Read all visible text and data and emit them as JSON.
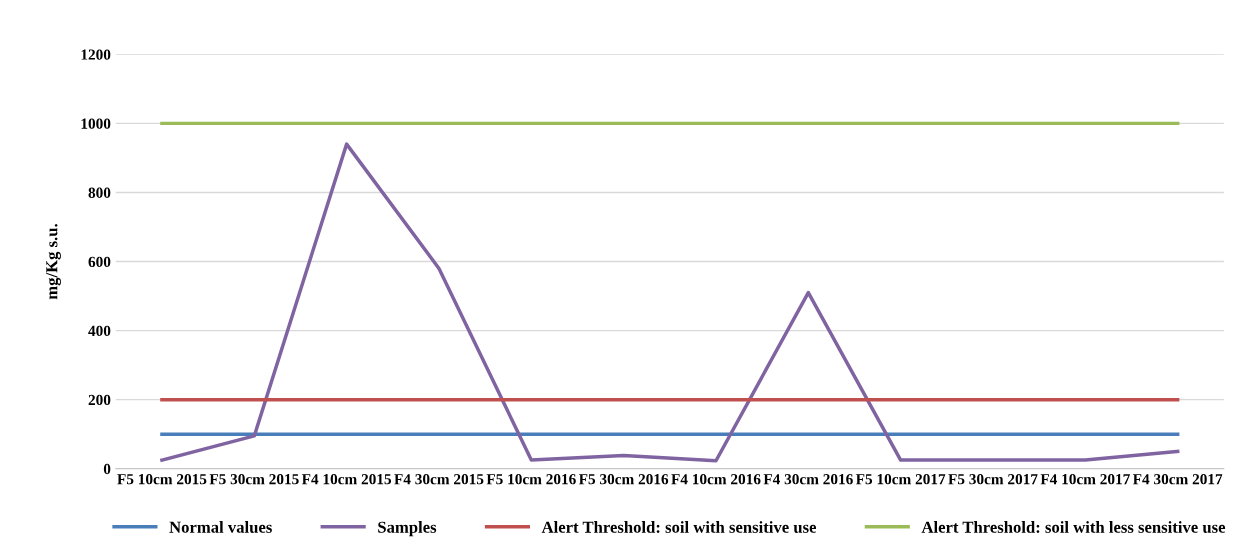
{
  "chart_data": {
    "type": "line",
    "ylabel": "mg/Kg s.u.",
    "categories": [
      "F5 10cm 2015",
      "F5 30cm 2015",
      "F4 10cm 2015",
      "F4 30cm 2015",
      "F5 10cm 2016",
      "F5 30cm 2016",
      "F4 10cm 2016",
      "F4 30cm 2016",
      "F5 10cm 2017",
      "F5 30cm 2017",
      "F4 10cm 2017",
      "F4 30cm 2017"
    ],
    "series": [
      {
        "name": "Normal values",
        "color": "#4a7ebb",
        "values": [
          100,
          100,
          100,
          100,
          100,
          100,
          100,
          100,
          100,
          100,
          100,
          100
        ]
      },
      {
        "name": "Samples",
        "color": "#8064a2",
        "values": [
          25,
          95,
          940,
          580,
          25,
          38,
          23,
          510,
          25,
          25,
          25,
          50
        ]
      },
      {
        "name": "Alert Threshold: soil with sensitive use",
        "color": "#c0504d",
        "values": [
          200,
          200,
          200,
          200,
          200,
          200,
          200,
          200,
          200,
          200,
          200,
          200
        ]
      },
      {
        "name": "Alert Threshold: soil with less sensitive use",
        "color": "#9bbb59",
        "values": [
          1000,
          1000,
          1000,
          1000,
          1000,
          1000,
          1000,
          1000,
          1000,
          1000,
          1000,
          1000
        ]
      }
    ],
    "ylim": [
      0,
      1200
    ],
    "yticks": [
      0,
      200,
      400,
      600,
      800,
      1000,
      1200
    ],
    "grid": "y",
    "legend": "bottom",
    "marker": "none",
    "line_style": "solid"
  }
}
